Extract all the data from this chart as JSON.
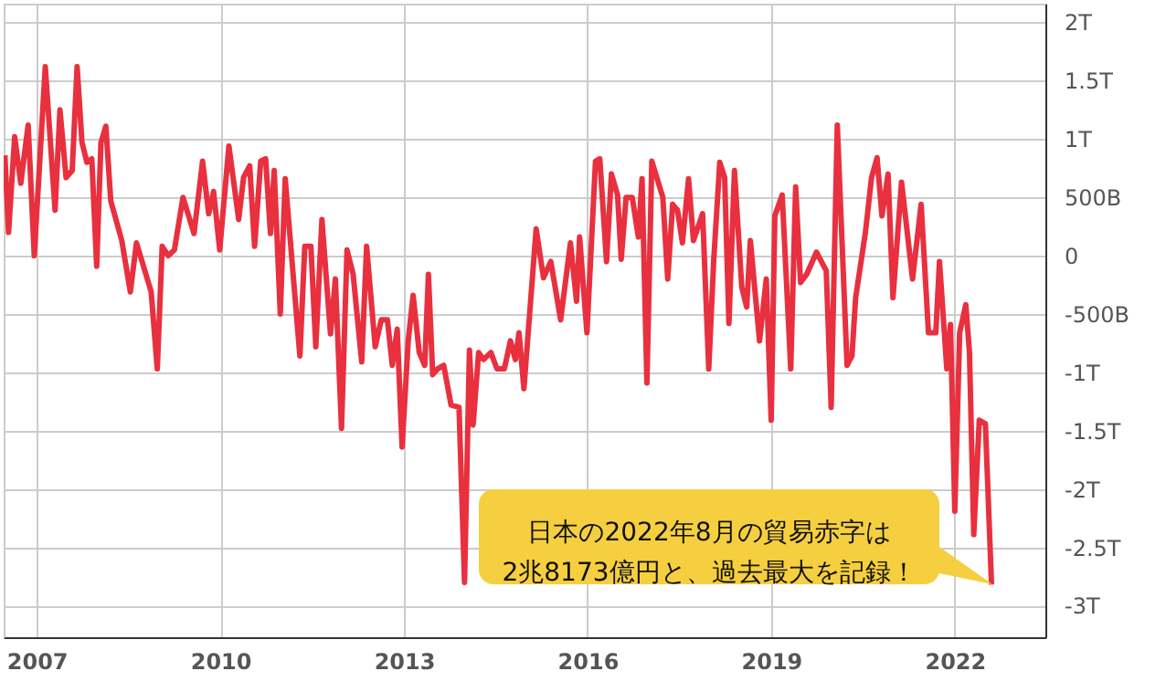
{
  "chart_data": {
    "type": "line",
    "x": [
      2006.48,
      2006.54,
      2006.64,
      2006.74,
      2006.86,
      2006.96,
      2007.14,
      2007.3,
      2007.38,
      2007.48,
      2007.58,
      2007.66,
      2007.74,
      2007.82,
      2007.9,
      2007.98,
      2008.05,
      2008.13,
      2008.21,
      2008.39,
      2008.53,
      2008.63,
      2008.87,
      2008.97,
      2009.05,
      2009.15,
      2009.25,
      2009.39,
      2009.57,
      2009.71,
      2009.81,
      2009.89,
      2009.99,
      2010.14,
      2010.3,
      2010.38,
      2010.48,
      2010.56,
      2010.66,
      2010.74,
      2010.82,
      2010.88,
      2010.98,
      2011.06,
      2011.3,
      2011.38,
      2011.48,
      2011.56,
      2011.66,
      2011.8,
      2011.88,
      2011.98,
      2012.07,
      2012.17,
      2012.31,
      2012.39,
      2012.53,
      2012.63,
      2012.73,
      2012.81,
      2012.89,
      2012.97,
      2013.07,
      2013.15,
      2013.25,
      2013.34,
      2013.4,
      2013.47,
      2013.55,
      2013.65,
      2013.77,
      2013.9,
      2013.99,
      2014.07,
      2014.13,
      2014.22,
      2014.3,
      2014.42,
      2014.52,
      2014.64,
      2014.74,
      2014.82,
      2014.88,
      2014.96,
      2015.16,
      2015.28,
      2015.4,
      2015.56,
      2015.72,
      2015.82,
      2015.87,
      2015.99,
      2016.13,
      2016.2,
      2016.31,
      2016.39,
      2016.49,
      2016.55,
      2016.63,
      2016.73,
      2016.83,
      2016.89,
      2016.97,
      2017.05,
      2017.23,
      2017.31,
      2017.39,
      2017.47,
      2017.55,
      2017.65,
      2017.73,
      2017.88,
      2017.98,
      2018.06,
      2018.16,
      2018.24,
      2018.31,
      2018.4,
      2018.52,
      2018.6,
      2018.66,
      2018.81,
      2018.92,
      2019.0,
      2019.06,
      2019.18,
      2019.32,
      2019.4,
      2019.48,
      2019.58,
      2019.74,
      2019.9,
      2019.98,
      2020.08,
      2020.24,
      2020.32,
      2020.38,
      2020.54,
      2020.64,
      2020.73,
      2020.81,
      2020.91,
      2020.99,
      2021.13,
      2021.31,
      2021.45,
      2021.57,
      2021.69,
      2021.75,
      2021.87,
      2021.93,
      2022.0,
      2022.08,
      2022.18,
      2022.24,
      2022.31,
      2022.4,
      2022.5,
      2022.6
    ],
    "series": [
      {
        "color": "#e8303f",
        "values": [
          860000000000.0,
          200000000000.0,
          1020000000000.0,
          620000000000.0,
          1120000000000.0,
          0,
          1620000000000.0,
          390000000000.0,
          1250000000000.0,
          670000000000.0,
          730000000000.0,
          1620000000000.0,
          970000000000.0,
          800000000000.0,
          830000000000.0,
          -90000000000.0,
          970000000000.0,
          1110000000000.0,
          470000000000.0,
          130000000000.0,
          -310000000000.0,
          110000000000.0,
          -310000000000.0,
          -970000000000.0,
          80000000000.0,
          0,
          50000000000.0,
          500000000000.0,
          190000000000.0,
          810000000000.0,
          360000000000.0,
          550000000000.0,
          50000000000.0,
          940000000000.0,
          310000000000.0,
          670000000000.0,
          770000000000.0,
          80000000000.0,
          810000000000.0,
          830000000000.0,
          190000000000.0,
          730000000000.0,
          -500000000000.0,
          660000000000.0,
          -860000000000.0,
          80000000000.0,
          80000000000.0,
          -780000000000.0,
          310000000000.0,
          -670000000000.0,
          -200000000000.0,
          -1480000000000.0,
          50000000000.0,
          -160000000000.0,
          -910000000000.0,
          80000000000.0,
          -780000000000.0,
          -550000000000.0,
          -550000000000.0,
          -940000000000.0,
          -630000000000.0,
          -1640000000000.0,
          -730000000000.0,
          -340000000000.0,
          -830000000000.0,
          -940000000000.0,
          -160000000000.0,
          -1020000000000.0,
          -970000000000.0,
          -940000000000.0,
          -1280000000000.0,
          -1300000000000.0,
          -2800000000000.0,
          -810000000000.0,
          -1450000000000.0,
          -830000000000.0,
          -890000000000.0,
          -830000000000.0,
          -970000000000.0,
          -970000000000.0,
          -730000000000.0,
          -890000000000.0,
          -660000000000.0,
          -1140000000000.0,
          230000000000.0,
          -190000000000.0,
          -50000000000.0,
          -550000000000.0,
          110000000000.0,
          -390000000000.0,
          160000000000.0,
          -660000000000.0,
          810000000000.0,
          830000000000.0,
          -50000000000.0,
          700000000000.0,
          520000000000.0,
          -30000000000.0,
          500000000000.0,
          500000000000.0,
          160000000000.0,
          660000000000.0,
          -1090000000000.0,
          810000000000.0,
          500000000000.0,
          -200000000000.0,
          440000000000.0,
          390000000000.0,
          110000000000.0,
          660000000000.0,
          130000000000.0,
          360000000000.0,
          -970000000000.0,
          -50000000000.0,
          800000000000.0,
          670000000000.0,
          -580000000000.0,
          730000000000.0,
          -270000000000.0,
          -440000000000.0,
          130000000000.0,
          -730000000000.0,
          -200000000000.0,
          -1410000000000.0,
          340000000000.0,
          520000000000.0,
          -970000000000.0,
          590000000000.0,
          -230000000000.0,
          -160000000000.0,
          30000000000.0,
          -130000000000.0,
          -1300000000000.0,
          1120000000000.0,
          -940000000000.0,
          -860000000000.0,
          -360000000000.0,
          200000000000.0,
          670000000000.0,
          840000000000.0,
          340000000000.0,
          700000000000.0,
          -360000000000.0,
          630000000000.0,
          -200000000000.0,
          440000000000.0,
          -660000000000.0,
          -660000000000.0,
          -50000000000.0,
          -970000000000.0,
          -590000000000.0,
          -2190000000000.0,
          -660000000000.0,
          -420000000000.0,
          -830000000000.0,
          -2390000000000.0,
          -1410000000000.0,
          -1440000000000.0,
          -2820000000000.0
        ]
      }
    ],
    "xlim": [
      2006.46,
      2023.48
    ],
    "xticks": [
      2007,
      2010,
      2013,
      2016,
      2019,
      2022
    ],
    "ylim": [
      -3270000000000.0,
      2160000000000.0
    ],
    "yticks": [
      {
        "value": 2000000000000.0,
        "label": "2T"
      },
      {
        "value": 1500000000000.0,
        "label": "1.5T"
      },
      {
        "value": 1000000000000.0,
        "label": "1T"
      },
      {
        "value": 500000000000.0,
        "label": "500B"
      },
      {
        "value": 0,
        "label": "0"
      },
      {
        "value": -500000000000.0,
        "label": "-500B"
      },
      {
        "value": -1000000000000.0,
        "label": "-1T"
      },
      {
        "value": -1500000000000.0,
        "label": "-1.5T"
      },
      {
        "value": -2000000000000.0,
        "label": "-2T"
      },
      {
        "value": -2500000000000.0,
        "label": "-2.5T"
      },
      {
        "value": -3000000000000.0,
        "label": "-3T"
      }
    ],
    "grid": true,
    "line_style": "solid",
    "annotations": [
      "日本の2022年8月の貿易赤字は\n2兆8173億円と、過去最大を記録！"
    ]
  }
}
